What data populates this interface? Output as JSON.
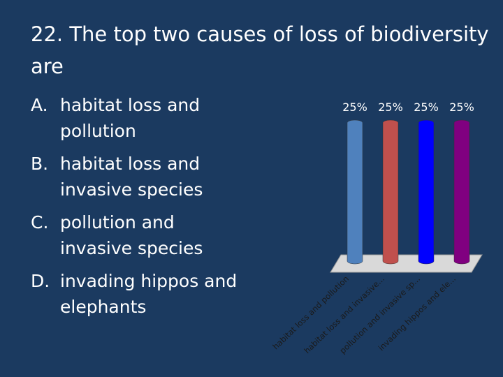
{
  "title": "22.  The top two causes of loss of biodiversity are",
  "options": [
    {
      "letter": "A.",
      "text": "habitat loss and pollution"
    },
    {
      "letter": "B.",
      "text": "habitat loss and invasive species"
    },
    {
      "letter": "C.",
      "text": "pollution and invasive species"
    },
    {
      "letter": "D.",
      "text": "invading hippos and elephants"
    }
  ],
  "chart_data": {
    "type": "bar",
    "categories": [
      "habitat loss and pollution",
      "habitat loss and invasive...",
      "pollution and invasive sp...",
      "invading hippos and ele..."
    ],
    "series": [
      {
        "name": null,
        "colors": [
          "#4f81bd",
          "#c0504d",
          "#0000ff",
          "#800080"
        ],
        "values": [
          25,
          25,
          25,
          25
        ],
        "value_labels": [
          "25%",
          "25%",
          "25%",
          "25%"
        ]
      }
    ]
  }
}
